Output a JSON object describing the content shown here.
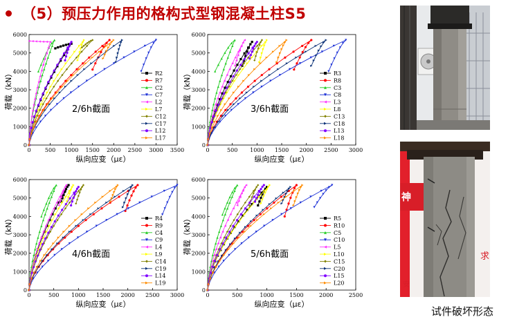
{
  "title": "（5）预压力作用的格构式型钢混凝土柱S5",
  "caption": "试件破坏形态",
  "colors": {
    "title": "#c00000",
    "series": [
      "#000000",
      "#ff0000",
      "#22cc22",
      "#1a2fd6",
      "#ff33ff",
      "#ffff00",
      "#808000",
      "#0c3278",
      "#7f00ff",
      "#ff8c00"
    ],
    "markers": [
      "square",
      "circle",
      "triangle-up",
      "triangle-down",
      "triangle-left",
      "triangle-right",
      "diamond",
      "triangle-right",
      "circle",
      "triangle-right"
    ]
  },
  "chart_data": [
    {
      "type": "line",
      "annotation": "2/6h截面",
      "xlabel": "纵向应变（με）",
      "ylabel": "荷载（kN）",
      "xlim": [
        0,
        3500
      ],
      "ylim": [
        0,
        6000
      ],
      "xticks": [
        0,
        500,
        1000,
        1500,
        2000,
        2500,
        3000,
        3500
      ],
      "yticks": [
        0,
        1000,
        2000,
        3000,
        4000,
        5000,
        6000
      ],
      "legend_position": "right",
      "series": [
        {
          "name": "R2",
          "peak": [
            1000,
            5500
          ],
          "end": [
            620,
            5250
          ]
        },
        {
          "name": "R7",
          "peak": [
            1900,
            5700
          ],
          "end": [
            1500,
            4100
          ]
        },
        {
          "name": "C2",
          "peak": [
            600,
            5700
          ],
          "end": [
            220,
            4000
          ]
        },
        {
          "name": "C7",
          "peak": [
            3000,
            5700
          ],
          "end": [
            2650,
            4000
          ]
        },
        {
          "name": "L2",
          "peak": [
            500,
            5600
          ],
          "end": [
            0,
            5650
          ]
        },
        {
          "name": "L7",
          "peak": [
            1300,
            5700
          ],
          "end": [
            1150,
            4600
          ]
        },
        {
          "name": "C12",
          "peak": [
            1500,
            5700
          ],
          "end": [
            1250,
            5300
          ]
        },
        {
          "name": "C17",
          "peak": [
            2200,
            5700
          ],
          "end": [
            2050,
            4500
          ]
        },
        {
          "name": "L12",
          "peak": [
            1000,
            5600
          ],
          "end": [
            850,
            4600
          ]
        },
        {
          "name": "L17",
          "peak": [
            2000,
            5700
          ],
          "end": [
            1750,
            4700
          ]
        }
      ]
    },
    {
      "type": "line",
      "annotation": "3/6h截面",
      "xlabel": "纵向应变（με）",
      "ylabel": "荷载（kN）",
      "xlim": [
        0,
        3000
      ],
      "ylim": [
        0,
        6000
      ],
      "xticks": [
        0,
        500,
        1000,
        1500,
        2000,
        2500,
        3000
      ],
      "yticks": [
        0,
        1000,
        2000,
        3000,
        4000,
        5000,
        6000
      ],
      "legend_position": "right",
      "series": [
        {
          "name": "R3",
          "peak": [
            900,
            5600
          ],
          "end": [
            700,
            4300
          ]
        },
        {
          "name": "R8",
          "peak": [
            2100,
            5700
          ],
          "end": [
            1750,
            4100
          ]
        },
        {
          "name": "C3",
          "peak": [
            550,
            5700
          ],
          "end": [
            150,
            4000
          ]
        },
        {
          "name": "C8",
          "peak": [
            2800,
            5700
          ],
          "end": [
            2450,
            4000
          ]
        },
        {
          "name": "L3",
          "peak": [
            750,
            5700
          ],
          "end": [
            550,
            4300
          ]
        },
        {
          "name": "L8",
          "peak": [
            1200,
            5700
          ],
          "end": [
            1050,
            4500
          ]
        },
        {
          "name": "C13",
          "peak": [
            1100,
            5700
          ],
          "end": [
            950,
            4600
          ]
        },
        {
          "name": "C18",
          "peak": [
            2400,
            5700
          ],
          "end": [
            2100,
            4300
          ]
        },
        {
          "name": "L13",
          "peak": [
            1000,
            5600
          ],
          "end": [
            850,
            4700
          ]
        },
        {
          "name": "L18",
          "peak": [
            1600,
            5700
          ],
          "end": [
            1400,
            4500
          ]
        }
      ]
    },
    {
      "type": "line",
      "annotation": "4/6h截面",
      "xlabel": "纵向应变（με）",
      "ylabel": "荷载（kN）",
      "xlim": [
        0,
        3000
      ],
      "ylim": [
        0,
        6000
      ],
      "xticks": [
        0,
        500,
        1000,
        1500,
        2000,
        2500,
        3000
      ],
      "yticks": [
        0,
        1000,
        2000,
        3000,
        4000,
        5000,
        6000
      ],
      "legend_position": "right",
      "series": [
        {
          "name": "R4",
          "peak": [
            800,
            5700
          ],
          "end": [
            650,
            4800
          ]
        },
        {
          "name": "R9",
          "peak": [
            2200,
            5700
          ],
          "end": [
            1950,
            4300
          ]
        },
        {
          "name": "C4",
          "peak": [
            550,
            5700
          ],
          "end": [
            250,
            4000
          ]
        },
        {
          "name": "C9",
          "peak": [
            3000,
            5700
          ],
          "end": [
            2700,
            4100
          ]
        },
        {
          "name": "L4",
          "peak": [
            750,
            5700
          ],
          "end": [
            600,
            4600
          ]
        },
        {
          "name": "L9",
          "peak": [
            900,
            5700
          ],
          "end": [
            750,
            4600
          ]
        },
        {
          "name": "C14",
          "peak": [
            1100,
            5700
          ],
          "end": [
            950,
            4700
          ]
        },
        {
          "name": "C19",
          "peak": [
            2100,
            5700
          ],
          "end": [
            1900,
            4500
          ]
        },
        {
          "name": "L14",
          "peak": [
            1000,
            5600
          ],
          "end": [
            850,
            4600
          ]
        },
        {
          "name": "L19",
          "peak": [
            1800,
            5700
          ],
          "end": [
            1650,
            4800
          ]
        }
      ]
    },
    {
      "type": "line",
      "annotation": "5/6h截面",
      "xlabel": "纵向应变（με）",
      "ylabel": "荷载（kN）",
      "xlim": [
        0,
        2500
      ],
      "ylim": [
        0,
        6000
      ],
      "xticks": [
        0,
        500,
        1000,
        1500,
        2000,
        2500
      ],
      "yticks": [
        0,
        1000,
        2000,
        3000,
        4000,
        5000,
        6000
      ],
      "legend_position": "right",
      "series": [
        {
          "name": "R5",
          "peak": [
            1000,
            5600
          ],
          "end": [
            850,
            4600
          ]
        },
        {
          "name": "R10",
          "peak": [
            1500,
            5700
          ],
          "end": [
            1300,
            4000
          ]
        },
        {
          "name": "C5",
          "peak": [
            500,
            5700
          ],
          "end": [
            250,
            4100
          ]
        },
        {
          "name": "C10",
          "peak": [
            2100,
            5700
          ],
          "end": [
            1800,
            4500
          ]
        },
        {
          "name": "L5",
          "peak": [
            650,
            5700
          ],
          "end": [
            500,
            4600
          ]
        },
        {
          "name": "L10",
          "peak": [
            1050,
            5700
          ],
          "end": [
            900,
            4700
          ]
        },
        {
          "name": "C15",
          "peak": [
            850,
            5700
          ],
          "end": [
            700,
            4600
          ]
        },
        {
          "name": "C20",
          "peak": [
            1400,
            5600
          ],
          "end": [
            1250,
            4700
          ]
        },
        {
          "name": "L15",
          "peak": [
            950,
            5700
          ],
          "end": [
            800,
            4800
          ]
        },
        {
          "name": "L20",
          "peak": [
            1600,
            5700
          ],
          "end": [
            1450,
            4600
          ]
        }
      ]
    }
  ]
}
